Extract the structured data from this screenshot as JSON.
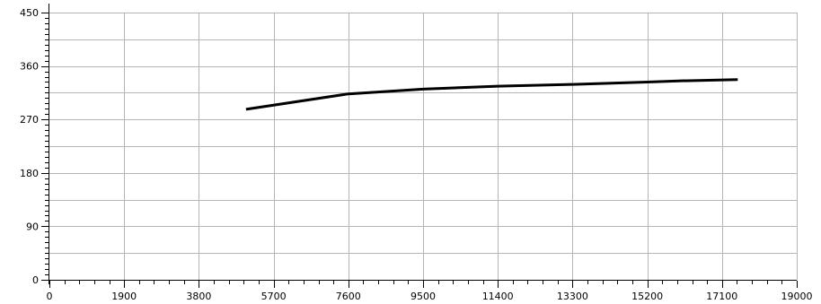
{
  "chart_data": {
    "type": "line",
    "title": "",
    "xlabel": "",
    "ylabel": "",
    "xlim": [
      0,
      19000
    ],
    "ylim": [
      0,
      450
    ],
    "x_ticks": [
      0,
      1900,
      3800,
      5700,
      7600,
      9500,
      11400,
      13300,
      15200,
      17100,
      19000
    ],
    "y_ticks": [
      0,
      90,
      180,
      270,
      360,
      450
    ],
    "x_tick_labels": [
      "0",
      "1900",
      "3800",
      "5700",
      "7600",
      "9500",
      "11400",
      "13300",
      "15200",
      "17100",
      "19000"
    ],
    "y_tick_labels": [
      "0",
      "90",
      "180",
      "270",
      "360",
      "450"
    ],
    "y_minor_grid": true,
    "grid": true,
    "legend": "none",
    "series": [
      {
        "color": "#000000",
        "x": [
          5000,
          7600,
          9500,
          11400,
          13300,
          15200,
          16000,
          17500
        ],
        "y": [
          287,
          313,
          321,
          326,
          329,
          333,
          335,
          337
        ]
      }
    ]
  }
}
